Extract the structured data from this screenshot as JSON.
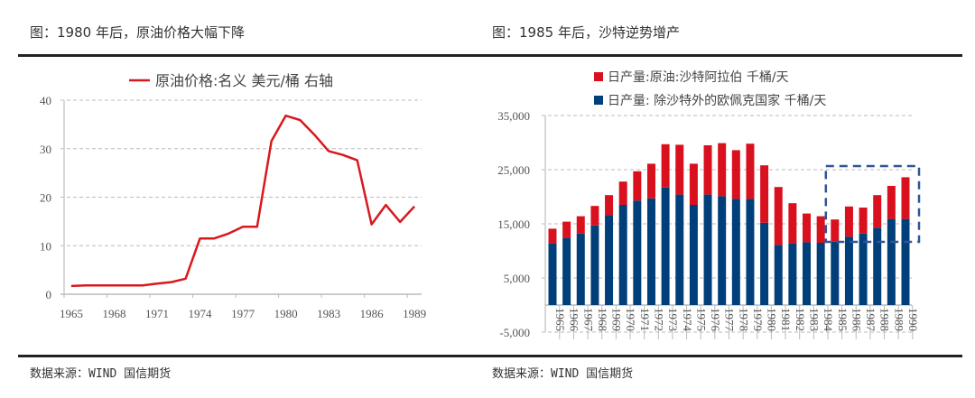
{
  "left": {
    "title": "图：1980 年后，原油价格大幅下降",
    "source": "数据来源：WIND 国信期货"
  },
  "right": {
    "title": "图：1985 年后，沙特逆势增产",
    "source": "数据来源：WIND 国信期货"
  },
  "chart_data": [
    {
      "type": "line",
      "title": "",
      "legend": "top",
      "grid": true,
      "ylim": [
        0,
        40
      ],
      "yticks": [
        "0",
        "10",
        "20",
        "30",
        "40"
      ],
      "xticks": [
        "1965",
        "1968",
        "1971",
        "1974",
        "1977",
        "1980",
        "1983",
        "1986",
        "1989"
      ],
      "x": [
        1965,
        1966,
        1967,
        1968,
        1969,
        1970,
        1971,
        1972,
        1973,
        1974,
        1975,
        1976,
        1977,
        1978,
        1979,
        1980,
        1981,
        1982,
        1983,
        1984,
        1985,
        1986,
        1987,
        1988,
        1989
      ],
      "series": [
        {
          "name": "原油价格:名义 美元/桶 右轴",
          "color": "#d7191c",
          "values": [
            1.7,
            1.8,
            1.8,
            1.8,
            1.8,
            1.8,
            2.2,
            2.5,
            3.2,
            11.5,
            11.5,
            12.5,
            13.9,
            13.9,
            31.6,
            36.8,
            35.9,
            32.9,
            29.5,
            28.7,
            27.6,
            14.4,
            18.4,
            14.9,
            18.1
          ]
        }
      ]
    },
    {
      "type": "bar",
      "stacked": true,
      "title": "",
      "legend": "top",
      "grid": true,
      "ylim": [
        -5000,
        35000
      ],
      "yticks": [
        "-5,000",
        "5,000",
        "15,000",
        "25,000",
        "35,000"
      ],
      "categories": [
        "1965",
        "1966",
        "1967",
        "1968",
        "1969",
        "1970",
        "1971",
        "1972",
        "1973",
        "1974",
        "1975",
        "1976",
        "1977",
        "1978",
        "1979",
        "1980",
        "1981",
        "1982",
        "1983",
        "1984",
        "1985",
        "1986",
        "1987",
        "1988",
        "1989",
        "1990"
      ],
      "series": [
        {
          "name": "日产量: 除沙特外的欧佩克国家 千桶/天",
          "color": "#003f7a",
          "values": [
            11400,
            12400,
            13200,
            14700,
            16600,
            18500,
            19300,
            19700,
            21700,
            20400,
            18500,
            20400,
            20100,
            19600,
            19600,
            15200,
            11100,
            11400,
            11600,
            11500,
            11700,
            12600,
            13200,
            14300,
            15900,
            15900
          ]
        },
        {
          "name": "日产量:原油:沙特阿拉伯 千桶/天",
          "color": "#d9101e",
          "values": [
            2700,
            3000,
            3200,
            3600,
            3700,
            4300,
            5400,
            6400,
            8000,
            9200,
            7600,
            9100,
            9800,
            9000,
            10200,
            10600,
            10700,
            7400,
            5300,
            4900,
            4100,
            5600,
            4800,
            6000,
            6100,
            7700
          ]
        }
      ],
      "highlight_box": {
        "from": "1985",
        "to": "1990",
        "color": "#2f5597"
      }
    }
  ]
}
